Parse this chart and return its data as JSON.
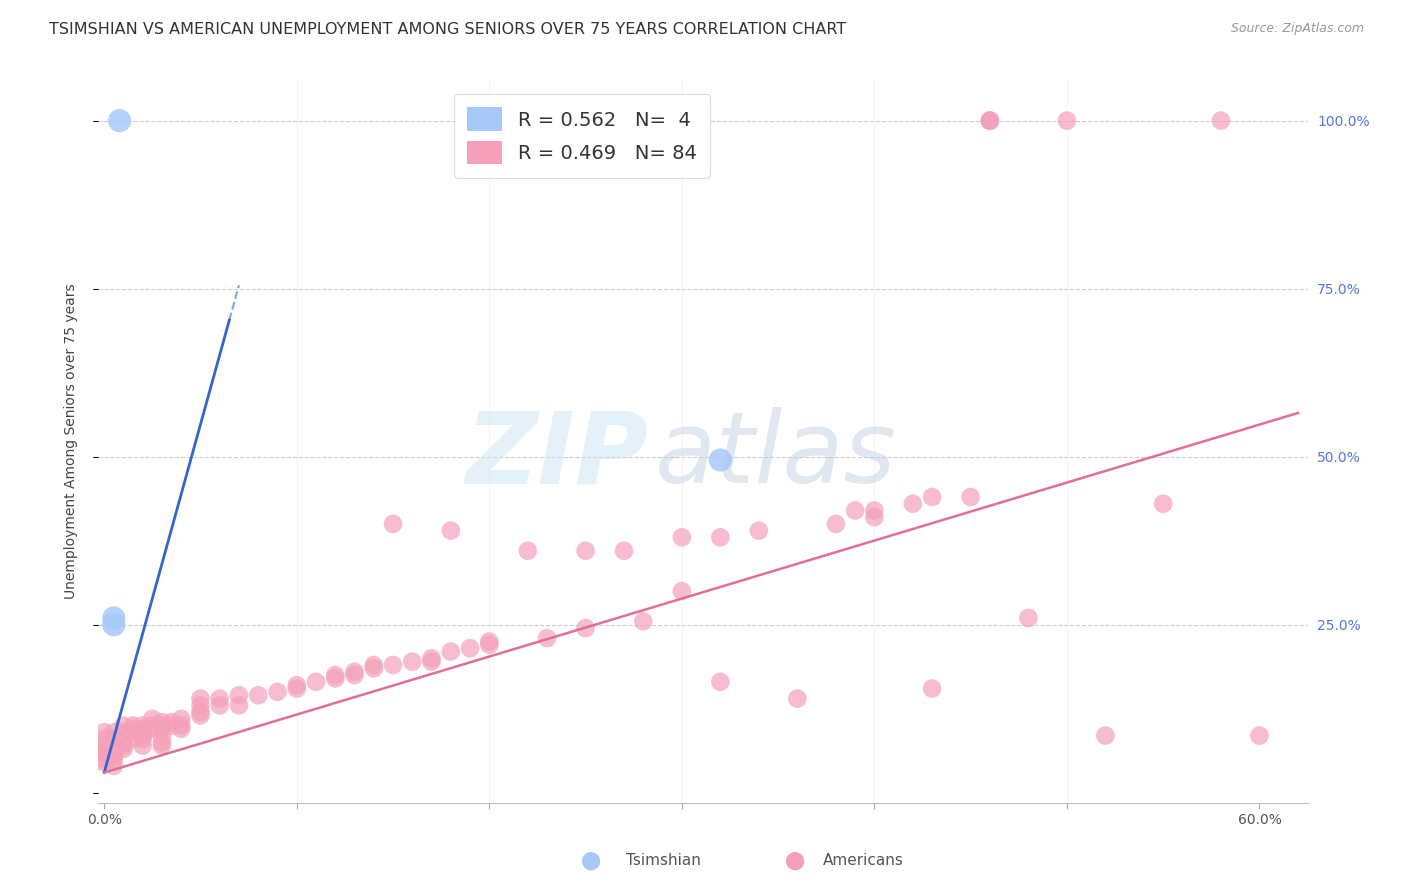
{
  "title": "TSIMSHIAN VS AMERICAN UNEMPLOYMENT AMONG SENIORS OVER 75 YEARS CORRELATION CHART",
  "source": "Source: ZipAtlas.com",
  "ylabel": "Unemployment Among Seniors over 75 years",
  "xlim": [
    -0.003,
    0.625
  ],
  "ylim": [
    -0.015,
    1.06
  ],
  "tsimshian_color": "#a8c8f8",
  "american_color": "#f4a0b8",
  "tsimshian_line_color": "#3366cc",
  "american_line_color": "#e07090",
  "tsimshian_scatter": [
    [
      0.008,
      1.0
    ],
    [
      0.005,
      0.26
    ],
    [
      0.005,
      0.25
    ],
    [
      0.32,
      0.495
    ]
  ],
  "american_scatter": [
    [
      0.0,
      0.065
    ],
    [
      0.0,
      0.07
    ],
    [
      0.0,
      0.08
    ],
    [
      0.0,
      0.09
    ],
    [
      0.0,
      0.05
    ],
    [
      0.0,
      0.045
    ],
    [
      0.0,
      0.06
    ],
    [
      0.005,
      0.06
    ],
    [
      0.005,
      0.07
    ],
    [
      0.005,
      0.055
    ],
    [
      0.005,
      0.08
    ],
    [
      0.005,
      0.09
    ],
    [
      0.005,
      0.05
    ],
    [
      0.005,
      0.04
    ],
    [
      0.01,
      0.065
    ],
    [
      0.01,
      0.075
    ],
    [
      0.01,
      0.08
    ],
    [
      0.01,
      0.09
    ],
    [
      0.01,
      0.1
    ],
    [
      0.01,
      0.085
    ],
    [
      0.01,
      0.07
    ],
    [
      0.015,
      0.08
    ],
    [
      0.015,
      0.09
    ],
    [
      0.015,
      0.1
    ],
    [
      0.015,
      0.095
    ],
    [
      0.02,
      0.09
    ],
    [
      0.02,
      0.1
    ],
    [
      0.02,
      0.095
    ],
    [
      0.02,
      0.085
    ],
    [
      0.02,
      0.07
    ],
    [
      0.02,
      0.08
    ],
    [
      0.025,
      0.1
    ],
    [
      0.025,
      0.11
    ],
    [
      0.025,
      0.095
    ],
    [
      0.03,
      0.095
    ],
    [
      0.03,
      0.1
    ],
    [
      0.03,
      0.105
    ],
    [
      0.03,
      0.085
    ],
    [
      0.03,
      0.075
    ],
    [
      0.03,
      0.07
    ],
    [
      0.035,
      0.1
    ],
    [
      0.035,
      0.105
    ],
    [
      0.04,
      0.11
    ],
    [
      0.04,
      0.1
    ],
    [
      0.04,
      0.095
    ],
    [
      0.05,
      0.12
    ],
    [
      0.05,
      0.13
    ],
    [
      0.05,
      0.14
    ],
    [
      0.05,
      0.115
    ],
    [
      0.06,
      0.13
    ],
    [
      0.06,
      0.14
    ],
    [
      0.07,
      0.13
    ],
    [
      0.07,
      0.145
    ],
    [
      0.08,
      0.145
    ],
    [
      0.09,
      0.15
    ],
    [
      0.1,
      0.155
    ],
    [
      0.1,
      0.16
    ],
    [
      0.11,
      0.165
    ],
    [
      0.12,
      0.17
    ],
    [
      0.12,
      0.175
    ],
    [
      0.13,
      0.175
    ],
    [
      0.13,
      0.18
    ],
    [
      0.14,
      0.185
    ],
    [
      0.14,
      0.19
    ],
    [
      0.15,
      0.19
    ],
    [
      0.15,
      0.4
    ],
    [
      0.16,
      0.195
    ],
    [
      0.17,
      0.2
    ],
    [
      0.17,
      0.195
    ],
    [
      0.18,
      0.21
    ],
    [
      0.18,
      0.39
    ],
    [
      0.19,
      0.215
    ],
    [
      0.2,
      0.22
    ],
    [
      0.2,
      0.225
    ],
    [
      0.22,
      0.36
    ],
    [
      0.23,
      0.23
    ],
    [
      0.25,
      0.245
    ],
    [
      0.25,
      0.36
    ],
    [
      0.27,
      0.36
    ],
    [
      0.28,
      0.255
    ],
    [
      0.3,
      0.3
    ],
    [
      0.3,
      0.38
    ],
    [
      0.32,
      0.38
    ],
    [
      0.32,
      0.165
    ],
    [
      0.34,
      0.39
    ],
    [
      0.36,
      0.14
    ],
    [
      0.38,
      0.4
    ],
    [
      0.39,
      0.42
    ],
    [
      0.4,
      0.42
    ],
    [
      0.4,
      0.41
    ],
    [
      0.42,
      0.43
    ],
    [
      0.43,
      0.44
    ],
    [
      0.43,
      0.155
    ],
    [
      0.45,
      0.44
    ],
    [
      0.46,
      1.0
    ],
    [
      0.46,
      1.0
    ],
    [
      0.46,
      1.0
    ],
    [
      0.48,
      0.26
    ],
    [
      0.5,
      1.0
    ],
    [
      0.52,
      0.085
    ],
    [
      0.55,
      0.43
    ],
    [
      0.58,
      1.0
    ],
    [
      0.6,
      0.085
    ]
  ],
  "tsimshian_line": {
    "x0": 0.0,
    "x1": 0.07,
    "y0": 0.03,
    "y1": 0.755,
    "solid_x0": 0.0,
    "solid_x1": 0.065
  },
  "american_line": {
    "x0": 0.0,
    "x1": 0.62,
    "y0": 0.03,
    "y1": 0.565
  },
  "watermark_zip": "ZIP",
  "watermark_atlas": "atlas",
  "background_color": "#ffffff",
  "grid_color": "#cccccc",
  "title_fontsize": 11.5,
  "axis_label_fontsize": 10,
  "tick_fontsize": 10,
  "legend_fontsize": 14,
  "right_tick_color": "#5577dd",
  "bottom_label_tsimshian": "Tsimshian",
  "bottom_label_americans": "Americans"
}
